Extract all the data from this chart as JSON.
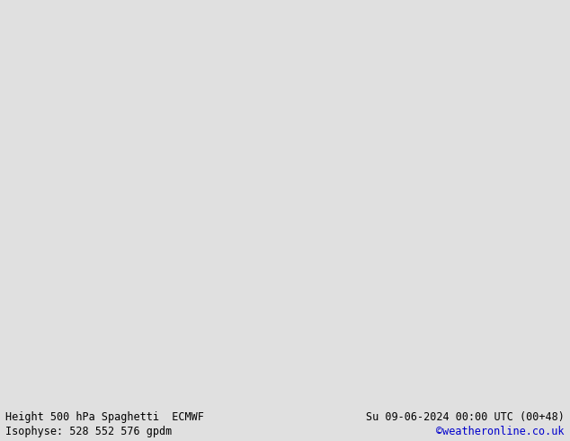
{
  "title_left": "Height 500 hPa Spaghetti  ECMWF",
  "title_right": "Su 09-06-2024 00:00 UTC (00+48)",
  "subtitle_left": "Isophyse: 528 552 576 gpdm",
  "subtitle_right": "©weatheronline.co.uk",
  "bg_color": "#e0e0e0",
  "land_color": "#b8e8a0",
  "border_color": "#222222",
  "sea_color": "#e0e0e0",
  "bottom_bar_color": "#d0d0d0",
  "bottom_text_color": "#000000",
  "copyright_color": "#0000cc",
  "figsize": [
    6.34,
    4.9
  ],
  "dpi": 100,
  "map_extent": [
    -5,
    40,
    52,
    72
  ],
  "spaghetti_colors": [
    "#888888",
    "#888888",
    "#888888",
    "#888888",
    "#888888",
    "#cc0000",
    "#dd2200",
    "#ee0000",
    "#ff00ff",
    "#ee00cc",
    "#cc00ff",
    "#0000ff",
    "#2200ee",
    "#0044ff",
    "#00aaff",
    "#0088cc",
    "#00ffff",
    "#00ddee",
    "#00cc00",
    "#00dd44",
    "#aaff00",
    "#88ee00",
    "#ffff00",
    "#eecc00",
    "#ff8800",
    "#ee6600",
    "#ff69b4",
    "#ff44aa",
    "#8800ff",
    "#6600cc",
    "#ff0066",
    "#ee0088",
    "#00ff88",
    "#00dd66",
    "#4488ff",
    "#2266dd"
  ],
  "contour_552_color": "#888888",
  "contour_552_lw": 1.2
}
